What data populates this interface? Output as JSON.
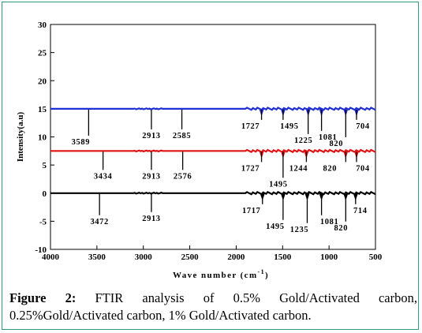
{
  "chart_data": {
    "type": "line",
    "xlabel": "Wave number (cm",
    "xlabel_sup": "-1",
    "xlabel_tail": ")",
    "ylabel": "Intensity(a.u)",
    "xlim": [
      4000,
      500
    ],
    "ylim": [
      -10,
      30
    ],
    "x_ticks": [
      4000,
      3500,
      3000,
      2500,
      2000,
      1500,
      1000,
      500
    ],
    "y_ticks": [
      -10,
      -5,
      0,
      5,
      10,
      15,
      20,
      25,
      30
    ],
    "grid": false,
    "series": [
      {
        "color": "#1f2fd1",
        "baseline": 15,
        "peaks": [
          {
            "x": 3589,
            "label": "3589"
          },
          {
            "x": 2913,
            "label": "2913"
          },
          {
            "x": 2585,
            "label": "2585"
          },
          {
            "x": 1727,
            "label": "1727"
          },
          {
            "x": 1495,
            "label": "1495"
          },
          {
            "x": 1225,
            "label": "1225"
          },
          {
            "x": 1081,
            "label": "1081"
          },
          {
            "x": 820,
            "label": "820"
          },
          {
            "x": 704,
            "label": "704"
          }
        ]
      },
      {
        "color": "#e01414",
        "baseline": 7.5,
        "peaks": [
          {
            "x": 3434,
            "label": "3434"
          },
          {
            "x": 2913,
            "label": "2913"
          },
          {
            "x": 2576,
            "label": "2576"
          },
          {
            "x": 1727,
            "label": "1727"
          },
          {
            "x": 1495,
            "label": "1495"
          },
          {
            "x": 1244,
            "label": "1244"
          },
          {
            "x": 820,
            "label": "820"
          },
          {
            "x": 704,
            "label": "704"
          }
        ]
      },
      {
        "color": "#000000",
        "baseline": 0,
        "peaks": [
          {
            "x": 3472,
            "label": "3472"
          },
          {
            "x": 2913,
            "label": "2913"
          },
          {
            "x": 1717,
            "label": "1717"
          },
          {
            "x": 1495,
            "label": "1495"
          },
          {
            "x": 1235,
            "label": "1235"
          },
          {
            "x": 1081,
            "label": "1081"
          },
          {
            "x": 820,
            "label": "820"
          },
          {
            "x": 714,
            "label": "714"
          }
        ]
      }
    ]
  },
  "caption": {
    "label": "Figure 2:",
    "text": " FTIR analysis of 0.5% Gold/Activated carbon, 0.25%Gold/Activated carbon, 1% Gold/Activated carbon."
  },
  "colors": {
    "frame": "#2f9a73"
  }
}
